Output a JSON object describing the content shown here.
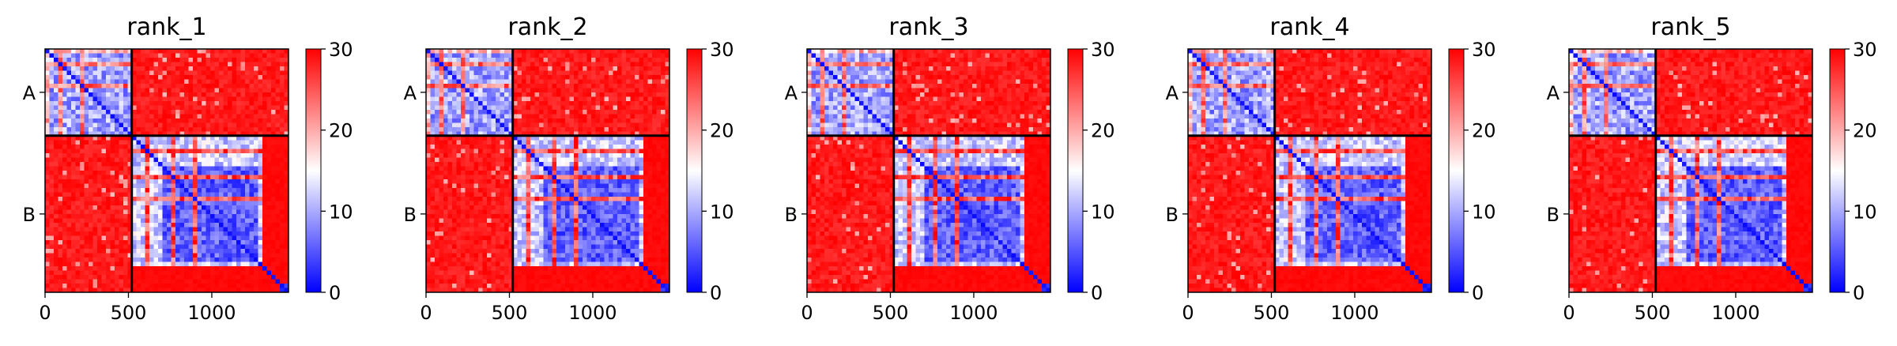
{
  "chart_data": {
    "type": "heatmap",
    "colormap": {
      "name": "bwr",
      "low": "#0000ff",
      "mid": "#ffffff",
      "high": "#ff0000",
      "vmin": 0,
      "vmax": 30,
      "ticks": [
        0,
        10,
        20,
        30
      ]
    },
    "x_range": [
      0,
      1460
    ],
    "x_ticks": [
      0,
      500,
      1000
    ],
    "chain_break": 520,
    "chain_labels": [
      "A",
      "B"
    ],
    "divider_color": "#000000",
    "panels": [
      {
        "title": "rank_1"
      },
      {
        "title": "rank_2"
      },
      {
        "title": "rank_3"
      },
      {
        "title": "rank_4"
      },
      {
        "title": "rank_5"
      }
    ]
  }
}
